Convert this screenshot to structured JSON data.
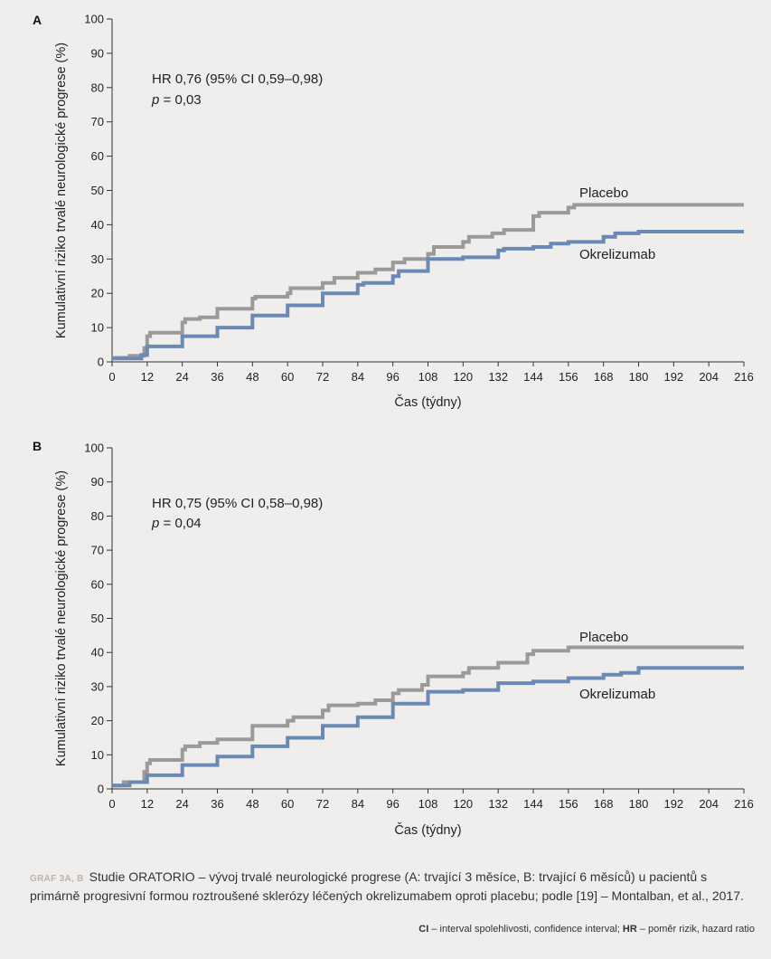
{
  "chart_data": [
    {
      "type": "line",
      "panel_label": "A",
      "ylabel": "Kumulativní riziko trvalé neurologické progrese (%)",
      "xlabel": "Čas (týdny)",
      "xlim": [
        0,
        216
      ],
      "ylim": [
        0,
        100
      ],
      "x_ticks": [
        0,
        12,
        24,
        36,
        48,
        60,
        72,
        84,
        96,
        108,
        120,
        132,
        144,
        156,
        168,
        180,
        192,
        204,
        216
      ],
      "y_ticks": [
        0,
        10,
        20,
        30,
        40,
        50,
        60,
        70,
        80,
        90,
        100
      ],
      "annotation": {
        "hr_text": "HR 0,76 (95% CI 0,59–0,98)",
        "p_label": "p",
        "p_text": " = 0,03"
      },
      "series": [
        {
          "name": "Placebo",
          "color": "#9b9a98",
          "step_points": [
            [
              0,
              1.2
            ],
            [
              6,
              1.2
            ],
            [
              6,
              1.8
            ],
            [
              11,
              1.8
            ],
            [
              11,
              4
            ],
            [
              12,
              4
            ],
            [
              12,
              7.5
            ],
            [
              13,
              7.5
            ],
            [
              13,
              8.5
            ],
            [
              24,
              8.5
            ],
            [
              24,
              11.5
            ],
            [
              25,
              11.5
            ],
            [
              25,
              12.5
            ],
            [
              30,
              12.5
            ],
            [
              30,
              13
            ],
            [
              36,
              13
            ],
            [
              36,
              15.5
            ],
            [
              48,
              15.5
            ],
            [
              48,
              18.5
            ],
            [
              49,
              18.5
            ],
            [
              49,
              19
            ],
            [
              60,
              19
            ],
            [
              60,
              20
            ],
            [
              61,
              20
            ],
            [
              61,
              21.5
            ],
            [
              72,
              21.5
            ],
            [
              72,
              23
            ],
            [
              76,
              23
            ],
            [
              76,
              24.5
            ],
            [
              84,
              24.5
            ],
            [
              84,
              26
            ],
            [
              90,
              26
            ],
            [
              90,
              27
            ],
            [
              96,
              27
            ],
            [
              96,
              29
            ],
            [
              100,
              29
            ],
            [
              100,
              30
            ],
            [
              108,
              30
            ],
            [
              108,
              31.5
            ],
            [
              110,
              31.5
            ],
            [
              110,
              33.5
            ],
            [
              120,
              33.5
            ],
            [
              120,
              35
            ],
            [
              122,
              35
            ],
            [
              122,
              36.5
            ],
            [
              130,
              36.5
            ],
            [
              130,
              37.5
            ],
            [
              134,
              37.5
            ],
            [
              134,
              38.5
            ],
            [
              144,
              38.5
            ],
            [
              144,
              42.5
            ],
            [
              146,
              42.5
            ],
            [
              146,
              43.5
            ],
            [
              156,
              43.5
            ],
            [
              156,
              45
            ],
            [
              158,
              45
            ],
            [
              158,
              45.8
            ],
            [
              216,
              45.8
            ]
          ]
        },
        {
          "name": "Okrelizumab",
          "color": "#6a89b4",
          "step_points": [
            [
              0,
              1
            ],
            [
              10,
              1
            ],
            [
              10,
              2
            ],
            [
              12,
              2
            ],
            [
              12,
              4.5
            ],
            [
              24,
              4.5
            ],
            [
              24,
              7.5
            ],
            [
              36,
              7.5
            ],
            [
              36,
              10
            ],
            [
              48,
              10
            ],
            [
              48,
              13.5
            ],
            [
              60,
              13.5
            ],
            [
              60,
              16.5
            ],
            [
              72,
              16.5
            ],
            [
              72,
              20
            ],
            [
              84,
              20
            ],
            [
              84,
              22.5
            ],
            [
              86,
              22.5
            ],
            [
              86,
              23
            ],
            [
              96,
              23
            ],
            [
              96,
              25
            ],
            [
              98,
              25
            ],
            [
              98,
              26.5
            ],
            [
              108,
              26.5
            ],
            [
              108,
              30
            ],
            [
              120,
              30
            ],
            [
              120,
              30.5
            ],
            [
              132,
              30.5
            ],
            [
              132,
              32.5
            ],
            [
              134,
              32.5
            ],
            [
              134,
              33
            ],
            [
              144,
              33
            ],
            [
              144,
              33.5
            ],
            [
              150,
              33.5
            ],
            [
              150,
              34.5
            ],
            [
              156,
              34.5
            ],
            [
              156,
              35
            ],
            [
              168,
              35
            ],
            [
              168,
              36.5
            ],
            [
              172,
              36.5
            ],
            [
              172,
              37.5
            ],
            [
              180,
              37.5
            ],
            [
              180,
              38
            ],
            [
              216,
              38
            ]
          ]
        }
      ]
    },
    {
      "type": "line",
      "panel_label": "B",
      "ylabel": "Kumulativní riziko trvalé neurologické progrese (%)",
      "xlabel": "Čas (týdny)",
      "xlim": [
        0,
        216
      ],
      "ylim": [
        0,
        100
      ],
      "x_ticks": [
        0,
        12,
        24,
        36,
        48,
        60,
        72,
        84,
        96,
        108,
        120,
        132,
        144,
        156,
        168,
        180,
        192,
        204,
        216
      ],
      "y_ticks": [
        0,
        10,
        20,
        30,
        40,
        50,
        60,
        70,
        80,
        90,
        100
      ],
      "annotation": {
        "hr_text": "HR 0,75 (95% CI 0,58–0,98)",
        "p_label": "p",
        "p_text": " = 0,04"
      },
      "series": [
        {
          "name": "Placebo",
          "color": "#9b9a98",
          "step_points": [
            [
              0,
              1
            ],
            [
              4,
              1
            ],
            [
              4,
              2
            ],
            [
              11,
              2
            ],
            [
              11,
              5
            ],
            [
              12,
              5
            ],
            [
              12,
              7.5
            ],
            [
              13,
              7.5
            ],
            [
              13,
              8.5
            ],
            [
              24,
              8.5
            ],
            [
              24,
              11.5
            ],
            [
              25,
              11.5
            ],
            [
              25,
              12.5
            ],
            [
              30,
              12.5
            ],
            [
              30,
              13.5
            ],
            [
              36,
              13.5
            ],
            [
              36,
              14.5
            ],
            [
              48,
              14.5
            ],
            [
              48,
              18.5
            ],
            [
              60,
              18.5
            ],
            [
              60,
              20
            ],
            [
              62,
              20
            ],
            [
              62,
              21
            ],
            [
              72,
              21
            ],
            [
              72,
              23
            ],
            [
              74,
              23
            ],
            [
              74,
              24.5
            ],
            [
              84,
              24.5
            ],
            [
              84,
              25
            ],
            [
              90,
              25
            ],
            [
              90,
              26
            ],
            [
              96,
              26
            ],
            [
              96,
              28
            ],
            [
              98,
              28
            ],
            [
              98,
              29
            ],
            [
              106,
              29
            ],
            [
              106,
              30.5
            ],
            [
              108,
              30.5
            ],
            [
              108,
              33
            ],
            [
              120,
              33
            ],
            [
              120,
              34
            ],
            [
              122,
              34
            ],
            [
              122,
              35.5
            ],
            [
              132,
              35.5
            ],
            [
              132,
              37
            ],
            [
              142,
              37
            ],
            [
              142,
              39.5
            ],
            [
              144,
              39.5
            ],
            [
              144,
              40.5
            ],
            [
              156,
              40.5
            ],
            [
              156,
              41.5
            ],
            [
              216,
              41.5
            ]
          ]
        },
        {
          "name": "Okrelizumab",
          "color": "#6a89b4",
          "step_points": [
            [
              0,
              1
            ],
            [
              6,
              1
            ],
            [
              6,
              2
            ],
            [
              12,
              2
            ],
            [
              12,
              4
            ],
            [
              24,
              4
            ],
            [
              24,
              7
            ],
            [
              36,
              7
            ],
            [
              36,
              9.5
            ],
            [
              48,
              9.5
            ],
            [
              48,
              12.5
            ],
            [
              60,
              12.5
            ],
            [
              60,
              15
            ],
            [
              72,
              15
            ],
            [
              72,
              18.5
            ],
            [
              84,
              18.5
            ],
            [
              84,
              21
            ],
            [
              96,
              21
            ],
            [
              96,
              25
            ],
            [
              108,
              25
            ],
            [
              108,
              28.5
            ],
            [
              120,
              28.5
            ],
            [
              120,
              29
            ],
            [
              132,
              29
            ],
            [
              132,
              31
            ],
            [
              144,
              31
            ],
            [
              144,
              31.5
            ],
            [
              156,
              31.5
            ],
            [
              156,
              32.5
            ],
            [
              168,
              32.5
            ],
            [
              168,
              33.5
            ],
            [
              174,
              33.5
            ],
            [
              174,
              34
            ],
            [
              180,
              34
            ],
            [
              180,
              35.5
            ],
            [
              216,
              35.5
            ]
          ]
        }
      ]
    }
  ],
  "caption": {
    "label": "GRAF 3A, B",
    "text": "Studie ORATORIO – vývoj trvalé neurologické progrese (A: trvající 3 měsíce, B: trvající 6 měsíců) u pacientů s primárně progresivní formou roztroušené sklerózy léčených okrelizumabem oproti placebu; podle [19] – Montalban, et al., 2017."
  },
  "footnote": {
    "ci_abbr": "CI",
    "ci_text": " – interval spolehlivosti, confidence interval; ",
    "hr_abbr": "HR",
    "hr_text": " – poměr rizik, hazard ratio"
  }
}
